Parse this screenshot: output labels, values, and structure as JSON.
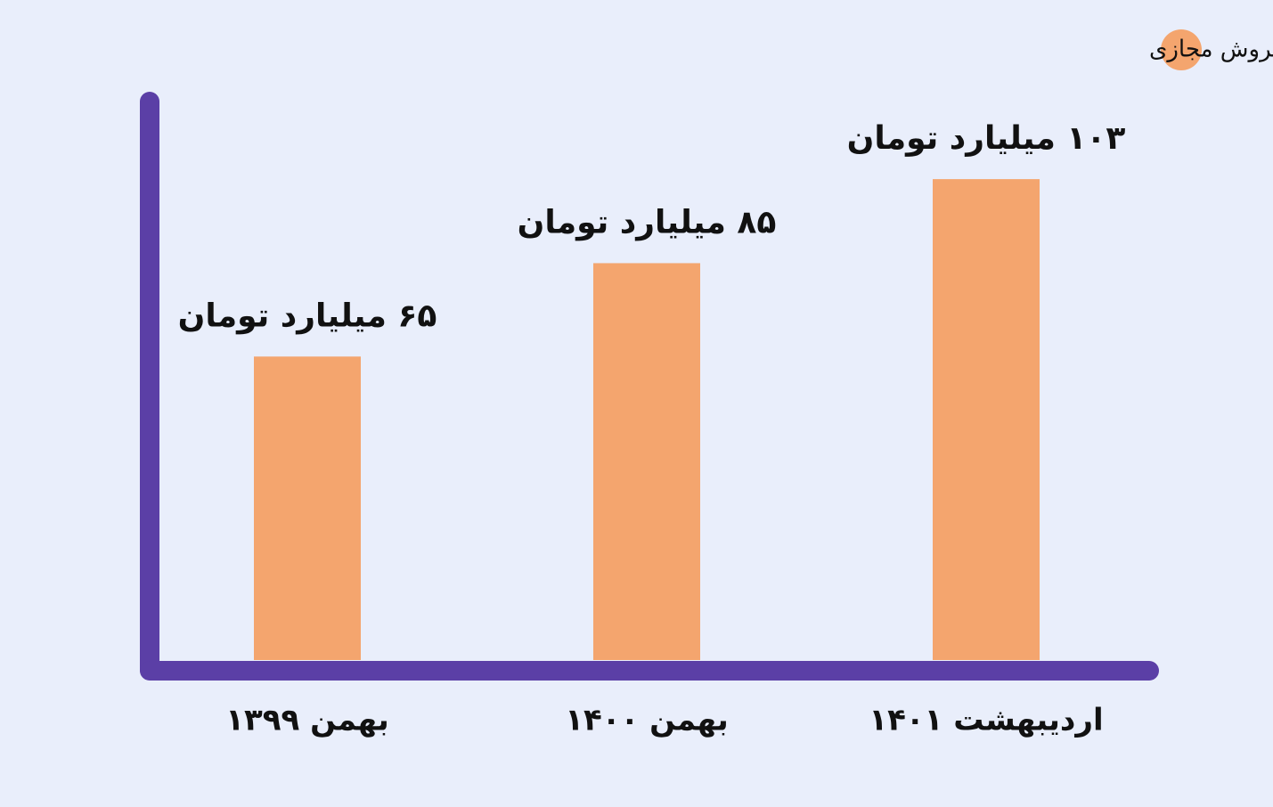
{
  "chart_data": {
    "type": "bar",
    "categories": [
      "بهمن ۱۳۹۹",
      "بهمن ۱۴۰۰",
      "اردیبهشت ۱۴۰۱"
    ],
    "series": [
      {
        "name": "فروش مجازی",
        "color": "#f4a56e",
        "values": [
          65,
          85,
          103
        ],
        "value_labels": [
          "۶۵ میلیارد تومان",
          "۸۵ میلیارد تومان",
          "۱۰۳ میلیارد تومان"
        ]
      }
    ],
    "ylim": [
      0,
      120
    ],
    "legend": "top-right"
  }
}
